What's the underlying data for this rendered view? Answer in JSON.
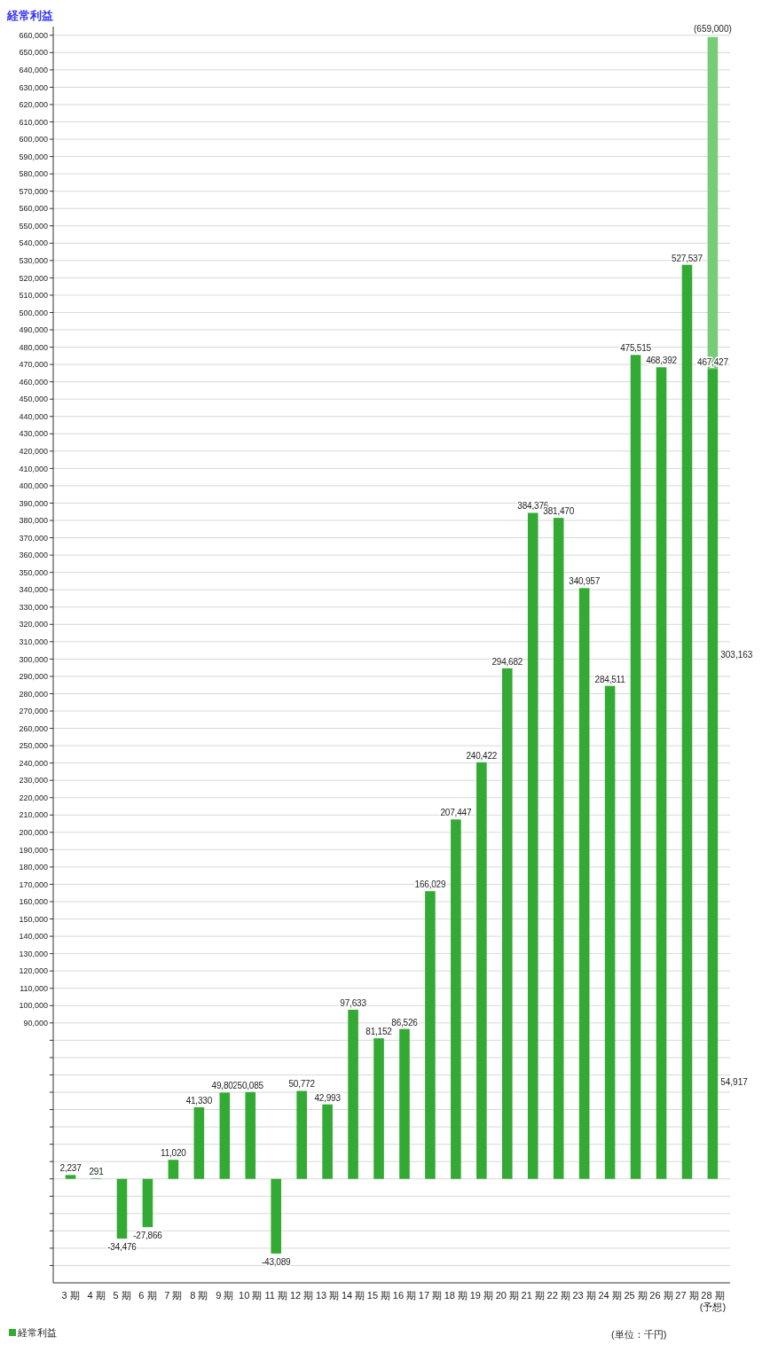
{
  "chart_data": {
    "type": "bar",
    "title": "経常利益",
    "stacked": true,
    "categories": [
      "3 期",
      "4 期",
      "5 期",
      "6 期",
      "7 期",
      "8 期",
      "9 期",
      "10 期",
      "11 期",
      "12 期",
      "13 期",
      "14 期",
      "15 期",
      "16 期",
      "17 期",
      "18 期",
      "19 期",
      "20 期",
      "21 期",
      "22 期",
      "23 期",
      "24 期",
      "25 期",
      "26 期",
      "27 期",
      "28 期\n(予想)"
    ],
    "series": [
      {
        "name": "経常利益",
        "color": "#33aa33",
        "values": [
          2237,
          291,
          -34476,
          -27866,
          11020,
          41330,
          49802,
          50085,
          -43089,
          50772,
          42993,
          97633,
          81152,
          86526,
          166029,
          207447,
          240422,
          294682,
          384376,
          381470,
          340957,
          284511,
          475515,
          468392,
          527537,
          467427
        ],
        "value_labels": [
          "2,237",
          "291",
          "-34,476",
          "-27,866",
          "11,020",
          "41,330",
          "49,802",
          "50,085",
          "-43,089",
          "50,772",
          "42,993",
          "97,633",
          "81,152",
          "86,526",
          "166,029",
          "207,447",
          "240,422",
          "294,682",
          "384,376",
          "381,470",
          "340,957",
          "284,511",
          "475,515",
          "468,392",
          "527,537",
          "467,427"
        ]
      },
      {
        "color": "#77cc77",
        "values": [
          null,
          null,
          null,
          null,
          null,
          null,
          null,
          null,
          null,
          null,
          null,
          null,
          null,
          null,
          null,
          null,
          null,
          null,
          null,
          null,
          null,
          null,
          null,
          null,
          null,
          191573
        ]
      }
    ],
    "totals": [
      null,
      null,
      null,
      null,
      null,
      null,
      null,
      null,
      null,
      null,
      null,
      null,
      null,
      null,
      null,
      null,
      null,
      null,
      null,
      null,
      null,
      null,
      null,
      null,
      null,
      "(659,000)"
    ],
    "annotations": [
      "303,163",
      "54,917",
      "(単位：千円)"
    ],
    "ylim": [
      -60000,
      665000
    ],
    "yticks": [
      {
        "value": -50000,
        "label": null
      },
      {
        "value": -40000,
        "label": null
      },
      {
        "value": -30000,
        "label": null
      },
      {
        "value": -20000,
        "label": null
      },
      {
        "value": -10000,
        "label": null
      },
      {
        "value": 0,
        "label": null
      },
      {
        "value": 10000,
        "label": null
      },
      {
        "value": 20000,
        "label": null
      },
      {
        "value": 30000,
        "label": null
      },
      {
        "value": 40000,
        "label": null
      },
      {
        "value": 50000,
        "label": null
      },
      {
        "value": 60000,
        "label": null
      },
      {
        "value": 70000,
        "label": null
      },
      {
        "value": 80000,
        "label": null
      },
      {
        "value": 90000,
        "label": "90,000"
      },
      {
        "value": 100000,
        "label": "100,000"
      },
      {
        "value": 110000,
        "label": "110,000"
      },
      {
        "value": 120000,
        "label": "120,000"
      },
      {
        "value": 130000,
        "label": "130,000"
      },
      {
        "value": 140000,
        "label": "140,000"
      },
      {
        "value": 150000,
        "label": "150,000"
      },
      {
        "value": 160000,
        "label": "160,000"
      },
      {
        "value": 170000,
        "label": "170,000"
      },
      {
        "value": 180000,
        "label": "180,000"
      },
      {
        "value": 190000,
        "label": "190,000"
      },
      {
        "value": 200000,
        "label": "200,000"
      },
      {
        "value": 210000,
        "label": "210,000"
      },
      {
        "value": 220000,
        "label": "220,000"
      },
      {
        "value": 230000,
        "label": "230,000"
      },
      {
        "value": 240000,
        "label": "240,000"
      },
      {
        "value": 250000,
        "label": "250,000"
      },
      {
        "value": 260000,
        "label": "260,000"
      },
      {
        "value": 270000,
        "label": "270,000"
      },
      {
        "value": 280000,
        "label": "280,000"
      },
      {
        "value": 290000,
        "label": "290,000"
      },
      {
        "value": 300000,
        "label": "300,000"
      },
      {
        "value": 310000,
        "label": "310,000"
      },
      {
        "value": 320000,
        "label": "320,000"
      },
      {
        "value": 330000,
        "label": "330,000"
      },
      {
        "value": 340000,
        "label": "340,000"
      },
      {
        "value": 350000,
        "label": "350,000"
      },
      {
        "value": 360000,
        "label": "360,000"
      },
      {
        "value": 370000,
        "label": "370,000"
      },
      {
        "value": 380000,
        "label": "380,000"
      },
      {
        "value": 390000,
        "label": "390,000"
      },
      {
        "value": 400000,
        "label": "400,000"
      },
      {
        "value": 410000,
        "label": "410,000"
      },
      {
        "value": 420000,
        "label": "420,000"
      },
      {
        "value": 430000,
        "label": "430,000"
      },
      {
        "value": 440000,
        "label": "440,000"
      },
      {
        "value": 450000,
        "label": "450,000"
      },
      {
        "value": 460000,
        "label": "460,000"
      },
      {
        "value": 470000,
        "label": "470,000"
      },
      {
        "value": 480000,
        "label": "480,000"
      },
      {
        "value": 490000,
        "label": "490,000"
      },
      {
        "value": 500000,
        "label": "500,000"
      },
      {
        "value": 510000,
        "label": "510,000"
      },
      {
        "value": 520000,
        "label": "520,000"
      },
      {
        "value": 530000,
        "label": "530,000"
      },
      {
        "value": 540000,
        "label": "540,000"
      },
      {
        "value": 550000,
        "label": "550,000"
      },
      {
        "value": 560000,
        "label": "560,000"
      },
      {
        "value": 570000,
        "label": "570,000"
      },
      {
        "value": 580000,
        "label": "580,000"
      },
      {
        "value": 590000,
        "label": "590,000"
      },
      {
        "value": 600000,
        "label": "600,000"
      },
      {
        "value": 610000,
        "label": "610,000"
      },
      {
        "value": 620000,
        "label": "620,000"
      },
      {
        "value": 630000,
        "label": "630,000"
      },
      {
        "value": 640000,
        "label": "640,000"
      },
      {
        "value": 650000,
        "label": "650,000"
      },
      {
        "value": 660000,
        "label": "660,000"
      }
    ],
    "grid": "y",
    "legend": "bottom left"
  }
}
